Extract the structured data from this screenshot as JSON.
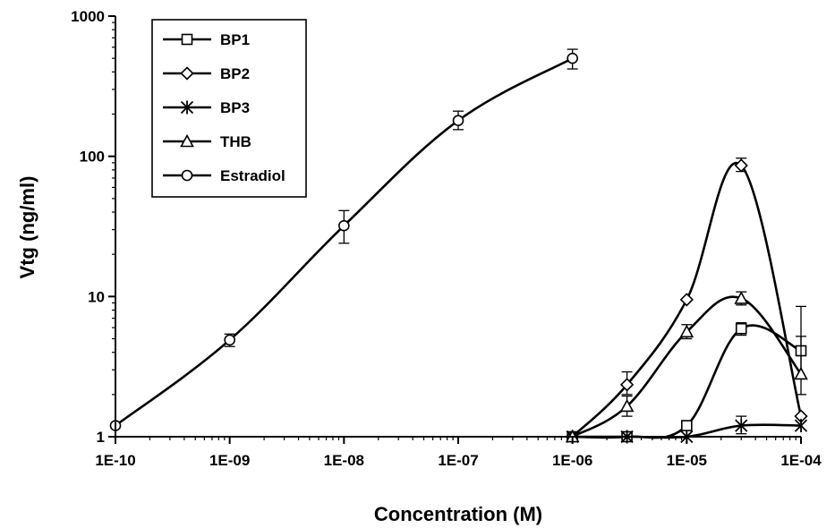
{
  "chart_data": {
    "type": "line",
    "xlabel": "Concentration (M)",
    "ylabel": "Vtg (ng/ml)",
    "xscale": "log",
    "yscale": "log",
    "xlim": [
      1e-10,
      0.0001
    ],
    "ylim": [
      1,
      1000
    ],
    "x_ticks": [
      1e-10,
      1e-09,
      1e-08,
      1e-07,
      1e-06,
      1e-05,
      0.0001
    ],
    "x_tick_labels": [
      "1E-10",
      "1E-09",
      "1E-08",
      "1E-07",
      "1E-06",
      "1E-05",
      "1E-04"
    ],
    "y_ticks": [
      1,
      10,
      100,
      1000
    ],
    "y_tick_labels": [
      "1",
      "10",
      "100",
      "1000"
    ],
    "grid": false,
    "legend_position": "top-left",
    "line_color": "#000000",
    "series": [
      {
        "name": "BP1",
        "marker": "square",
        "x": [
          1e-06,
          3e-06,
          1e-05,
          3e-05,
          0.0001
        ],
        "y": [
          1.0,
          1.0,
          1.2,
          5.9,
          4.1
        ],
        "y_err_upper": [
          null,
          null,
          null,
          6.5,
          8.5
        ],
        "y_err_lower": [
          null,
          null,
          null,
          5.3,
          2.0
        ]
      },
      {
        "name": "BP2",
        "marker": "diamond",
        "x": [
          1e-06,
          3e-06,
          1e-05,
          3e-05,
          0.0001
        ],
        "y": [
          1.0,
          2.35,
          9.5,
          86,
          1.4
        ],
        "y_err_upper": [
          null,
          2.9,
          null,
          97,
          null
        ],
        "y_err_lower": [
          null,
          2.0,
          null,
          78,
          null
        ]
      },
      {
        "name": "BP3",
        "marker": "asterisk",
        "x": [
          1e-06,
          3e-06,
          1e-05,
          3e-05,
          0.0001
        ],
        "y": [
          1.0,
          1.0,
          1.0,
          1.2,
          1.2
        ],
        "y_err_upper": [
          null,
          null,
          null,
          1.4,
          null
        ],
        "y_err_lower": [
          null,
          null,
          null,
          1.05,
          null
        ]
      },
      {
        "name": "THB",
        "marker": "triangle",
        "x": [
          1e-06,
          3e-06,
          1e-05,
          3e-05,
          0.0001
        ],
        "y": [
          1.0,
          1.65,
          5.6,
          9.7,
          2.8
        ],
        "y_err_upper": [
          null,
          1.95,
          6.3,
          10.8,
          5.2
        ],
        "y_err_lower": [
          null,
          1.4,
          5.0,
          8.7,
          null
        ]
      },
      {
        "name": "Estradiol",
        "marker": "circle",
        "x": [
          1e-10,
          1e-09,
          1e-08,
          1e-07,
          1e-06
        ],
        "y": [
          1.2,
          4.9,
          32,
          180,
          500
        ],
        "y_err_upper": [
          null,
          5.4,
          41,
          210,
          580
        ],
        "y_err_lower": [
          null,
          4.4,
          24,
          155,
          420
        ]
      }
    ]
  }
}
